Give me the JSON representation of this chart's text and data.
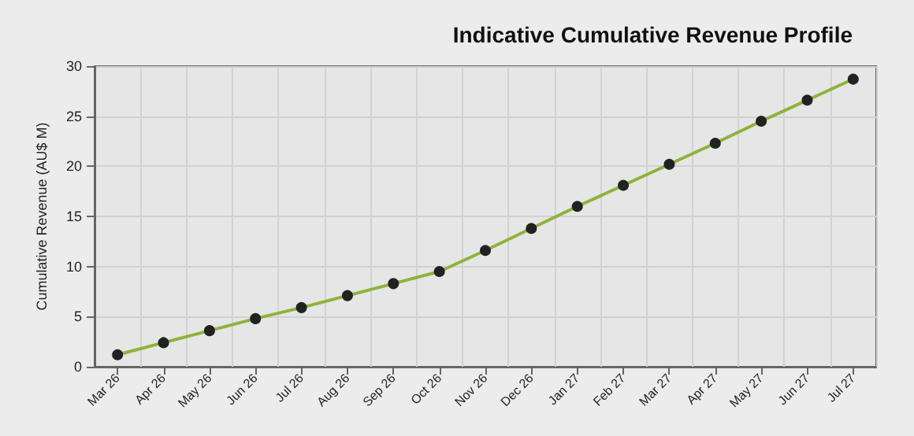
{
  "chart_data": {
    "type": "line",
    "title": "Indicative Cumulative Revenue Profile",
    "ylabel": "Cumulative Revenue (AU$ M)",
    "categories": [
      "Mar 26",
      "Apr 26",
      "May 26",
      "Jun 26",
      "Jul 26",
      "Aug 26",
      "Sep 26",
      "Oct 26",
      "Nov 26",
      "Dec 26",
      "Jan 27",
      "Feb 27",
      "Mar 27",
      "Apr 27",
      "May 27",
      "Jun 27",
      "Jul 27"
    ],
    "series": [
      {
        "color": "#8db33a",
        "values": [
          1.2,
          2.4,
          3.6,
          4.8,
          5.9,
          7.1,
          8.3,
          9.5,
          11.6,
          13.8,
          16.0,
          18.1,
          20.2,
          22.3,
          24.5,
          26.6,
          28.7
        ]
      }
    ],
    "ylim": [
      0,
      30
    ],
    "yticks": [
      0,
      5,
      10,
      15,
      20,
      25,
      30
    ],
    "grid": true,
    "marker": "circle",
    "line_style": "solid"
  }
}
